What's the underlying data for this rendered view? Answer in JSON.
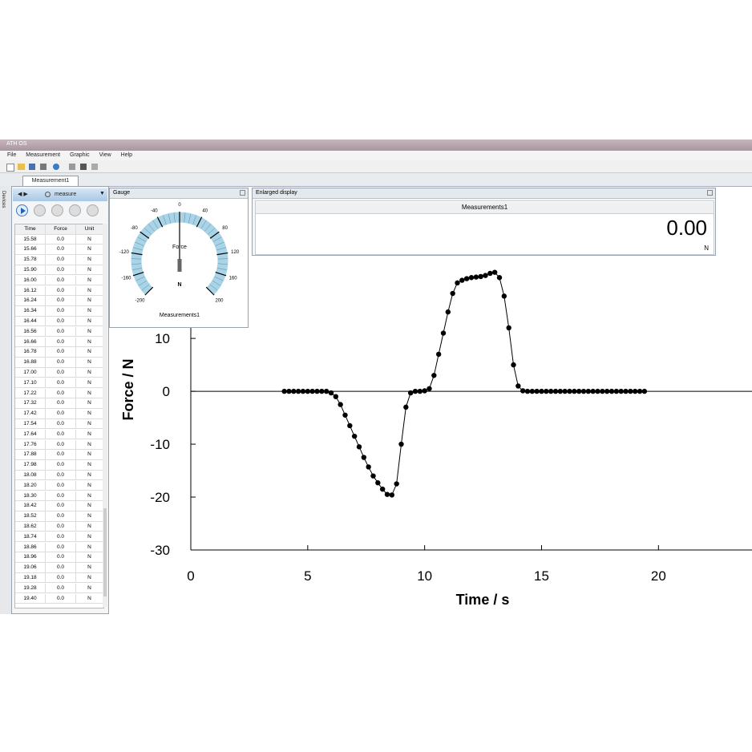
{
  "window": {
    "title": "ATH OS",
    "menu": [
      "File",
      "Measurement",
      "Graphic",
      "View",
      "Help"
    ],
    "tab": "Measurement1",
    "side_tab": "Devices"
  },
  "left_panel": {
    "title": "measure",
    "table": {
      "header": [
        "Time",
        "Force",
        "Unit"
      ],
      "rows": [
        [
          "15.58",
          "0.0",
          "N"
        ],
        [
          "15.66",
          "0.0",
          "N"
        ],
        [
          "15.78",
          "0.0",
          "N"
        ],
        [
          "15.90",
          "0.0",
          "N"
        ],
        [
          "16.00",
          "0.0",
          "N"
        ],
        [
          "16.12",
          "0.0",
          "N"
        ],
        [
          "16.24",
          "0.0",
          "N"
        ],
        [
          "16.34",
          "0.0",
          "N"
        ],
        [
          "16.44",
          "0.0",
          "N"
        ],
        [
          "16.56",
          "0.0",
          "N"
        ],
        [
          "16.66",
          "0.0",
          "N"
        ],
        [
          "16.78",
          "0.0",
          "N"
        ],
        [
          "16.88",
          "0.0",
          "N"
        ],
        [
          "17.00",
          "0.0",
          "N"
        ],
        [
          "17.10",
          "0.0",
          "N"
        ],
        [
          "17.22",
          "0.0",
          "N"
        ],
        [
          "17.32",
          "0.0",
          "N"
        ],
        [
          "17.42",
          "0.0",
          "N"
        ],
        [
          "17.54",
          "0.0",
          "N"
        ],
        [
          "17.64",
          "0.0",
          "N"
        ],
        [
          "17.76",
          "0.0",
          "N"
        ],
        [
          "17.88",
          "0.0",
          "N"
        ],
        [
          "17.98",
          "0.0",
          "N"
        ],
        [
          "18.08",
          "0.0",
          "N"
        ],
        [
          "18.20",
          "0.0",
          "N"
        ],
        [
          "18.30",
          "0.0",
          "N"
        ],
        [
          "18.42",
          "0.0",
          "N"
        ],
        [
          "18.52",
          "0.0",
          "N"
        ],
        [
          "18.62",
          "0.0",
          "N"
        ],
        [
          "18.74",
          "0.0",
          "N"
        ],
        [
          "18.86",
          "0.0",
          "N"
        ],
        [
          "18.96",
          "0.0",
          "N"
        ],
        [
          "19.06",
          "0.0",
          "N"
        ],
        [
          "19.18",
          "0.0",
          "N"
        ],
        [
          "19.28",
          "0.0",
          "N"
        ],
        [
          "19.40",
          "0.0",
          "N"
        ]
      ]
    }
  },
  "gauge": {
    "title": "Gauge",
    "label": "Force",
    "unit": "N",
    "source": "Measurements1",
    "ticks": [
      -200,
      -160,
      -120,
      -80,
      -40,
      0,
      40,
      80,
      120,
      160,
      200
    ],
    "value": 0
  },
  "display": {
    "title": "Enlarged display",
    "source": "Measurements1",
    "value": "0.00",
    "unit": "N"
  },
  "chart_data": {
    "type": "line",
    "xlabel": "Time / s",
    "ylabel": "Force / N",
    "color": "#000000",
    "x": [
      4.0,
      4.2,
      4.4,
      4.6,
      4.8,
      5.0,
      5.2,
      5.4,
      5.6,
      5.8,
      6.0,
      6.2,
      6.4,
      6.6,
      6.8,
      7.0,
      7.2,
      7.4,
      7.6,
      7.8,
      8.0,
      8.2,
      8.4,
      8.6,
      8.8,
      9.0,
      9.2,
      9.4,
      9.6,
      9.8,
      10.0,
      10.2,
      10.4,
      10.6,
      10.8,
      11.0,
      11.2,
      11.4,
      11.6,
      11.8,
      12.0,
      12.2,
      12.4,
      12.6,
      12.8,
      13.0,
      13.2,
      13.4,
      13.6,
      13.8,
      14.0,
      14.2,
      14.4,
      14.6,
      14.8,
      15.0,
      15.2,
      15.4,
      15.6,
      15.8,
      16.0,
      16.2,
      16.4,
      16.6,
      16.8,
      17.0,
      17.2,
      17.4,
      17.6,
      17.8,
      18.0,
      18.2,
      18.4,
      18.6,
      18.8,
      19.0,
      19.2,
      19.4
    ],
    "values": [
      0,
      0,
      0,
      0,
      0,
      0,
      0,
      0,
      0,
      0,
      -0.3,
      -1,
      -2.5,
      -4.5,
      -6.5,
      -8.5,
      -10.5,
      -12.5,
      -14.3,
      -16,
      -17.3,
      -18.5,
      -19.5,
      -19.6,
      -17.5,
      -10,
      -3,
      -0.3,
      0,
      0,
      0.1,
      0.5,
      3,
      7,
      11,
      15,
      18.5,
      20.5,
      21,
      21.3,
      21.5,
      21.6,
      21.7,
      21.9,
      22.3,
      22.5,
      21.5,
      18,
      12,
      5,
      1,
      0.1,
      0,
      0,
      0,
      0,
      0,
      0,
      0,
      0,
      0,
      0,
      0,
      0,
      0,
      0,
      0,
      0,
      0,
      0,
      0,
      0,
      0,
      0,
      0,
      0,
      0,
      0
    ],
    "xlim": [
      0,
      24
    ],
    "ylim": [
      -30,
      37
    ],
    "xticks": [
      0,
      5,
      10,
      15,
      20
    ],
    "yticks": [
      -30,
      -20,
      -10,
      0,
      10
    ],
    "zero_line": true
  }
}
